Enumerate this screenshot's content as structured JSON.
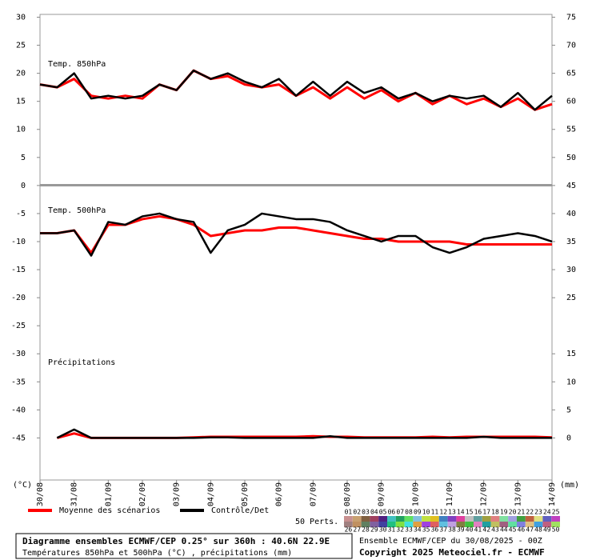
{
  "chart_data": {
    "type": "line",
    "xlim": [
      0,
      360
    ],
    "xticks": [
      {
        "value": 0,
        "label": "30/08"
      },
      {
        "value": 24,
        "label": "31/08"
      },
      {
        "value": 48,
        "label": "01/09"
      },
      {
        "value": 72,
        "label": "02/09"
      },
      {
        "value": 96,
        "label": "03/09"
      },
      {
        "value": 120,
        "label": "04/09"
      },
      {
        "value": 144,
        "label": "05/09"
      },
      {
        "value": 168,
        "label": "06/09"
      },
      {
        "value": 192,
        "label": "07/09"
      },
      {
        "value": 216,
        "label": "08/09"
      },
      {
        "value": 240,
        "label": "09/09"
      },
      {
        "value": 264,
        "label": "10/09"
      },
      {
        "value": 288,
        "label": "11/09"
      },
      {
        "value": 312,
        "label": "12/09"
      },
      {
        "value": 336,
        "label": "13/09"
      },
      {
        "value": 360,
        "label": "14/09"
      }
    ],
    "ylim": [
      -52.5,
      30.5
    ],
    "yticks": [
      30,
      25,
      20,
      15,
      10,
      5,
      0,
      -5,
      -10,
      -15,
      -20,
      -25,
      -30,
      -35,
      -40,
      -45
    ],
    "y2lim": [
      -7.5,
      75.5
    ],
    "y2ticks": [
      75,
      70,
      65,
      60,
      55,
      50,
      45,
      40,
      35,
      30,
      25,
      15,
      10,
      5,
      0
    ],
    "ylabel": "(°C)",
    "y2label": "(mm)",
    "x": [
      0,
      12,
      24,
      36,
      48,
      60,
      72,
      84,
      96,
      108,
      120,
      132,
      144,
      156,
      168,
      180,
      192,
      204,
      216,
      228,
      240,
      252,
      264,
      276,
      288,
      300,
      312,
      324,
      336,
      348,
      360
    ],
    "panels": [
      {
        "label": "Temp. 850hPa",
        "axis": "y",
        "series": [
          {
            "name": "Moyenne des scénarios",
            "color": "#ff0000",
            "values": [
              18,
              17.5,
              19,
              16,
              15.5,
              16,
              15.5,
              18,
              17,
              20.5,
              19,
              19.5,
              18,
              17.5,
              18,
              16,
              17.5,
              15.5,
              17.5,
              15.5,
              17,
              15,
              16.5,
              14.5,
              16,
              14.5,
              15.5,
              14,
              15.5,
              13.5,
              14.5
            ]
          },
          {
            "name": "Contrôle/Det",
            "color": "#000000",
            "values": [
              18,
              17.5,
              20,
              15.5,
              16,
              15.5,
              16,
              18,
              17,
              20.5,
              19,
              20,
              18.5,
              17.5,
              19,
              16,
              18.5,
              16,
              18.5,
              16.5,
              17.5,
              15.5,
              16.5,
              15,
              16,
              15.5,
              16,
              14,
              16.5,
              13.5,
              16
            ]
          }
        ]
      },
      {
        "label": "Temp. 500hPa",
        "axis": "y",
        "series": [
          {
            "name": "Moyenne des scénarios",
            "color": "#ff0000",
            "values": [
              -8.5,
              -8.5,
              -8,
              -12,
              -7,
              -7,
              -6,
              -5.5,
              -6,
              -7,
              -9,
              -8.5,
              -8,
              -8,
              -7.5,
              -7.5,
              -8,
              -8.5,
              -9,
              -9.5,
              -9.5,
              -10,
              -10,
              -10,
              -10,
              -10.5,
              -10.5,
              -10.5,
              -10.5,
              -10.5,
              -10.5
            ]
          },
          {
            "name": "Contrôle/Det",
            "color": "#000000",
            "values": [
              -8.5,
              -8.5,
              -8,
              -12.5,
              -6.5,
              -7,
              -5.5,
              -5,
              -6,
              -6.5,
              -12,
              -8,
              -7,
              -5,
              -5.5,
              -6,
              -6,
              -6.5,
              -8,
              -9,
              -10,
              -9,
              -9,
              -11,
              -12,
              -11,
              -9.5,
              -9,
              -8.5,
              -9,
              -10
            ]
          }
        ]
      },
      {
        "label": "Précipitations",
        "axis": "y2",
        "series": [
          {
            "name": "Moyenne des scénarios",
            "color": "#ff0000",
            "values": [
              null,
              0,
              0.8,
              0,
              0,
              0,
              0,
              0,
              0,
              0.1,
              0.2,
              0.2,
              0.2,
              0.2,
              0.2,
              0.2,
              0.3,
              0.2,
              0.2,
              0.1,
              0.1,
              0.1,
              0.1,
              0.2,
              0.1,
              0.2,
              0.2,
              0.2,
              0.2,
              0.2,
              0.1
            ]
          },
          {
            "name": "Contrôle/Det",
            "color": "#000000",
            "values": [
              null,
              0,
              1.5,
              0,
              0,
              0,
              0,
              0,
              0,
              0,
              0.1,
              0.1,
              0,
              0,
              0,
              0,
              0,
              0.3,
              0,
              0,
              0,
              0,
              0,
              0,
              0,
              0,
              0.2,
              0,
              0,
              0,
              0
            ]
          }
        ]
      }
    ],
    "members_label": "50 Perts.",
    "members": [
      "01",
      "02",
      "03",
      "04",
      "05",
      "06",
      "07",
      "08",
      "09",
      "10",
      "11",
      "12",
      "13",
      "14",
      "15",
      "16",
      "17",
      "18",
      "19",
      "20",
      "21",
      "22",
      "23",
      "24",
      "25",
      "26",
      "27",
      "28",
      "29",
      "30",
      "31",
      "32",
      "33",
      "34",
      "35",
      "36",
      "37",
      "38",
      "39",
      "40",
      "41",
      "42",
      "43",
      "44",
      "45",
      "46",
      "47",
      "48",
      "49",
      "50"
    ],
    "member_colors": [
      "#c89090",
      "#c8a070",
      "#806040",
      "#a04060",
      "#502080",
      "#40c0c0",
      "#20a060",
      "#60e060",
      "#80c0e0",
      "#c0e040",
      "#e0c020",
      "#4080c0",
      "#8040c0",
      "#e040a0",
      "#c0c0c0",
      "#60a0a0",
      "#a0a040",
      "#e08080",
      "#80e0a0",
      "#a0a0e0",
      "#40a040",
      "#c06040",
      "#e0e080",
      "#6060c0",
      "#c040c0",
      "#a08080",
      "#c09060",
      "#608060",
      "#8060a0",
      "#4040a0",
      "#20c080",
      "#80e040",
      "#40e0e0",
      "#e0a040",
      "#a040e0",
      "#e06060",
      "#60c0e0",
      "#c0a0e0",
      "#808040",
      "#40c040",
      "#e080c0",
      "#20a0a0",
      "#c0c060",
      "#a06080",
      "#60e0a0",
      "#8080e0",
      "#e0c080",
      "#40a0e0",
      "#c06080",
      "#a0e060"
    ],
    "footer": {
      "title": "Diagramme ensembles ECMWF/CEP 0.25° sur 360h : 40.6N 22.9E",
      "subtitle": "Températures 850hPa et 500hPa (°C) , précipitations (mm)",
      "run": "Ensemble ECMWF/CEP du 30/08/2025 - 00Z",
      "copyright": "Copyright 2025 Meteociel.fr - ECMWF"
    }
  }
}
